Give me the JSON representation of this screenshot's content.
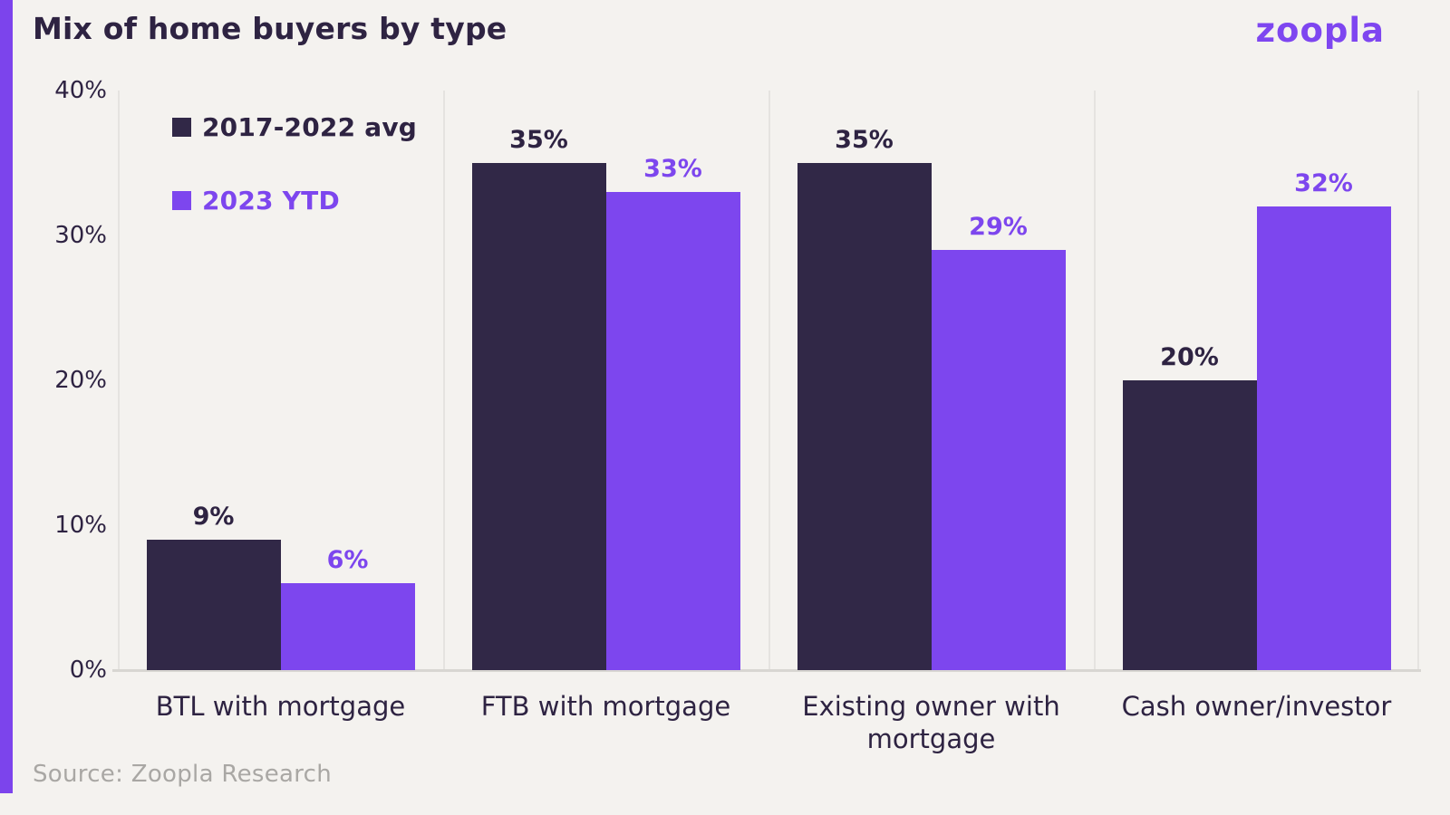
{
  "header": {
    "title": "Mix of home buyers by type",
    "logo_text": "zoopla"
  },
  "source": "Source: Zoopla Research",
  "colors": {
    "accent_purple": "#7c44ec",
    "series_dark": "#312847",
    "series_purple": "#7d46ee",
    "text_dark": "#2e2342",
    "background": "#f4f2ef",
    "divider": "#e5e3e0",
    "source_text": "#a9a7a4"
  },
  "y_axis": {
    "ticks": [
      "40%",
      "30%",
      "20%",
      "10%",
      "0%"
    ]
  },
  "chart_data": {
    "type": "bar",
    "title": "Mix of home buyers by type",
    "categories": [
      "BTL with mortgage",
      "FTB with mortgage",
      "Existing owner with mortgage",
      "Cash owner/investor"
    ],
    "series": [
      {
        "name": "2017-2022 avg",
        "color": "#312847",
        "values": [
          9,
          35,
          35,
          20
        ],
        "labels": [
          "9%",
          "35%",
          "35%",
          "20%"
        ]
      },
      {
        "name": "2023 YTD",
        "color": "#7d46ee",
        "values": [
          6,
          33,
          29,
          32
        ],
        "labels": [
          "6%",
          "33%",
          "29%",
          "32%"
        ]
      }
    ],
    "xlabel": "",
    "ylabel": "",
    "ylim": [
      0,
      40
    ],
    "grid": "vertical-panel-dividers-only",
    "legend_position": "inside-top-left"
  }
}
